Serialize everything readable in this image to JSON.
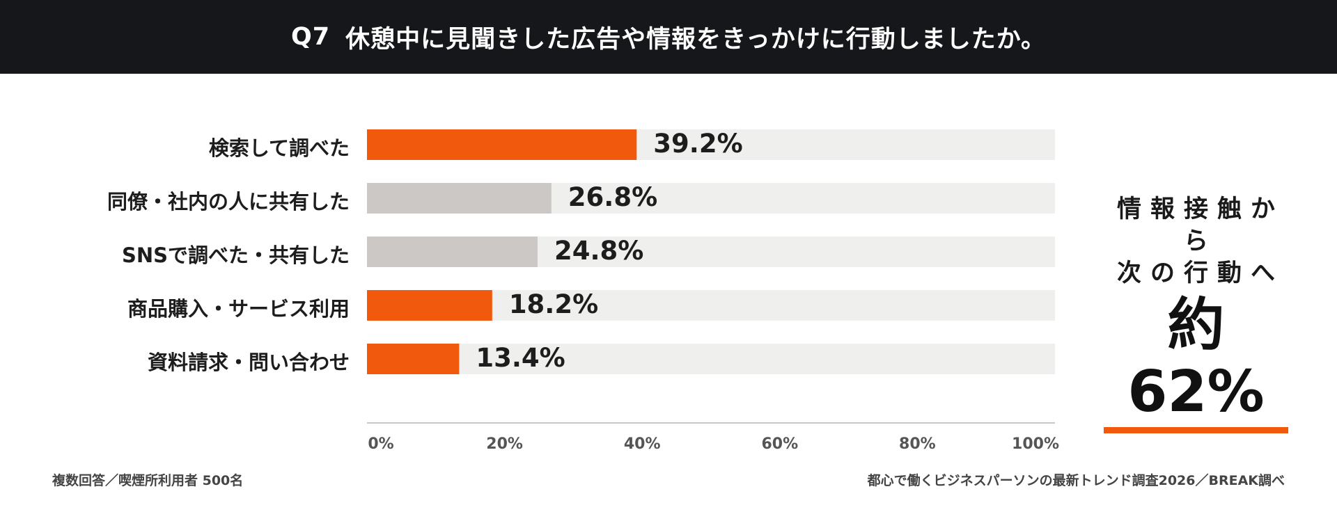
{
  "header": {
    "qnum": "Q7",
    "question": "休憩中に見聞きした広告や情報をきっかけに行動しましたか。"
  },
  "colors": {
    "highlight": "#f15a0c",
    "neutral": "#cbc8c5",
    "track": "#efefed",
    "axis": "#c8c8c8"
  },
  "chart_data": {
    "type": "bar",
    "orientation": "horizontal",
    "categories": [
      "検索して調べた",
      "同僚・社内の人に共有した",
      "SNSで調べた・共有した",
      "商品購入・サービス利用",
      "資料請求・問い合わせ"
    ],
    "values": [
      39.2,
      26.8,
      24.8,
      18.2,
      13.4
    ],
    "value_labels": [
      "39.2%",
      "26.8%",
      "24.8%",
      "18.2%",
      "13.4%"
    ],
    "highlighted": [
      true,
      false,
      false,
      true,
      true
    ],
    "xlim": [
      0,
      100
    ],
    "xticks": [
      0,
      20,
      40,
      60,
      80,
      100
    ],
    "xtick_labels": [
      "0%",
      "20%",
      "40%",
      "60%",
      "80%",
      "100%"
    ],
    "grid": false
  },
  "callout": {
    "line1": "情報接触から",
    "line2": "次の行動へ",
    "big": "約62%"
  },
  "footnotes": {
    "left": "複数回答／喫煙所利用者 500名",
    "right": "都心で働くビジネスパーソンの最新トレンド調査2026／BREAK調べ"
  }
}
